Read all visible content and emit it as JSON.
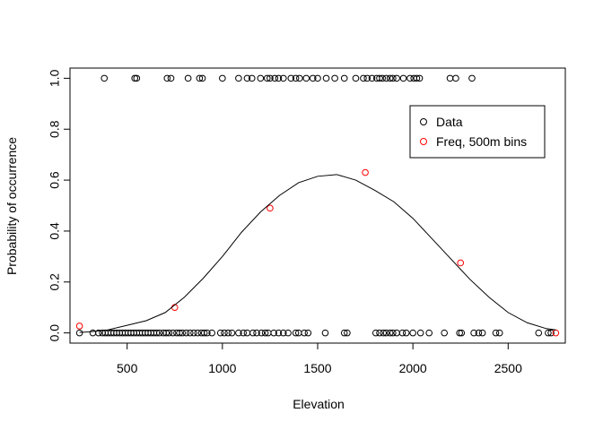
{
  "chart_data": {
    "type": "scatter",
    "title": "",
    "xlabel": "Elevation",
    "ylabel": "Probability of occurrence",
    "xlim": [
      200,
      2800
    ],
    "ylim": [
      -0.04,
      1.04
    ],
    "x_ticks": [
      500,
      1000,
      1500,
      2000,
      2500
    ],
    "x_tick_labels": [
      "500",
      "1000",
      "1500",
      "2000",
      "2500"
    ],
    "y_ticks": [
      0.0,
      0.2,
      0.4,
      0.6,
      0.8,
      1.0
    ],
    "y_tick_labels": [
      "0.0",
      "0.2",
      "0.4",
      "0.6",
      "0.8",
      "1.0"
    ],
    "grid": false,
    "legend": {
      "position": "top-right",
      "entries": [
        {
          "label": "Data",
          "color": "#000000"
        },
        {
          "label": "Freq, 500m bins",
          "color": "#ff0000"
        }
      ]
    },
    "series": [
      {
        "name": "Data",
        "type": "scatter",
        "color": "#000000",
        "points": [
          {
            "x": 380,
            "y": 1
          },
          {
            "x": 540,
            "y": 1
          },
          {
            "x": 550,
            "y": 1
          },
          {
            "x": 710,
            "y": 1
          },
          {
            "x": 730,
            "y": 1
          },
          {
            "x": 820,
            "y": 1
          },
          {
            "x": 880,
            "y": 1
          },
          {
            "x": 895,
            "y": 1
          },
          {
            "x": 1000,
            "y": 1
          },
          {
            "x": 1085,
            "y": 1
          },
          {
            "x": 1130,
            "y": 1
          },
          {
            "x": 1155,
            "y": 1
          },
          {
            "x": 1200,
            "y": 1
          },
          {
            "x": 1235,
            "y": 1
          },
          {
            "x": 1250,
            "y": 1
          },
          {
            "x": 1275,
            "y": 1
          },
          {
            "x": 1295,
            "y": 1
          },
          {
            "x": 1320,
            "y": 1
          },
          {
            "x": 1360,
            "y": 1
          },
          {
            "x": 1385,
            "y": 1
          },
          {
            "x": 1405,
            "y": 1
          },
          {
            "x": 1440,
            "y": 1
          },
          {
            "x": 1475,
            "y": 1
          },
          {
            "x": 1500,
            "y": 1
          },
          {
            "x": 1545,
            "y": 1
          },
          {
            "x": 1590,
            "y": 1
          },
          {
            "x": 1640,
            "y": 1
          },
          {
            "x": 1700,
            "y": 1
          },
          {
            "x": 1740,
            "y": 1
          },
          {
            "x": 1760,
            "y": 1
          },
          {
            "x": 1785,
            "y": 1
          },
          {
            "x": 1810,
            "y": 1
          },
          {
            "x": 1825,
            "y": 1
          },
          {
            "x": 1840,
            "y": 1
          },
          {
            "x": 1860,
            "y": 1
          },
          {
            "x": 1880,
            "y": 1
          },
          {
            "x": 1895,
            "y": 1
          },
          {
            "x": 1915,
            "y": 1
          },
          {
            "x": 1950,
            "y": 1
          },
          {
            "x": 1985,
            "y": 1
          },
          {
            "x": 2005,
            "y": 1
          },
          {
            "x": 2020,
            "y": 1
          },
          {
            "x": 2035,
            "y": 1
          },
          {
            "x": 2195,
            "y": 1
          },
          {
            "x": 2225,
            "y": 1
          },
          {
            "x": 2310,
            "y": 1
          },
          {
            "x": 250,
            "y": 0
          },
          {
            "x": 320,
            "y": 0
          },
          {
            "x": 350,
            "y": 0
          },
          {
            "x": 370,
            "y": 0
          },
          {
            "x": 385,
            "y": 0
          },
          {
            "x": 400,
            "y": 0
          },
          {
            "x": 415,
            "y": 0
          },
          {
            "x": 430,
            "y": 0
          },
          {
            "x": 445,
            "y": 0
          },
          {
            "x": 460,
            "y": 0
          },
          {
            "x": 475,
            "y": 0
          },
          {
            "x": 490,
            "y": 0
          },
          {
            "x": 505,
            "y": 0
          },
          {
            "x": 520,
            "y": 0
          },
          {
            "x": 535,
            "y": 0
          },
          {
            "x": 550,
            "y": 0
          },
          {
            "x": 565,
            "y": 0
          },
          {
            "x": 580,
            "y": 0
          },
          {
            "x": 595,
            "y": 0
          },
          {
            "x": 610,
            "y": 0
          },
          {
            "x": 625,
            "y": 0
          },
          {
            "x": 640,
            "y": 0
          },
          {
            "x": 655,
            "y": 0
          },
          {
            "x": 670,
            "y": 0
          },
          {
            "x": 690,
            "y": 0
          },
          {
            "x": 705,
            "y": 0
          },
          {
            "x": 720,
            "y": 0
          },
          {
            "x": 740,
            "y": 0
          },
          {
            "x": 760,
            "y": 0
          },
          {
            "x": 775,
            "y": 0
          },
          {
            "x": 790,
            "y": 0
          },
          {
            "x": 810,
            "y": 0
          },
          {
            "x": 830,
            "y": 0
          },
          {
            "x": 850,
            "y": 0
          },
          {
            "x": 870,
            "y": 0
          },
          {
            "x": 890,
            "y": 0
          },
          {
            "x": 905,
            "y": 0
          },
          {
            "x": 920,
            "y": 0
          },
          {
            "x": 945,
            "y": 0
          },
          {
            "x": 990,
            "y": 0
          },
          {
            "x": 1010,
            "y": 0
          },
          {
            "x": 1030,
            "y": 0
          },
          {
            "x": 1050,
            "y": 0
          },
          {
            "x": 1085,
            "y": 0
          },
          {
            "x": 1110,
            "y": 0
          },
          {
            "x": 1130,
            "y": 0
          },
          {
            "x": 1160,
            "y": 0
          },
          {
            "x": 1180,
            "y": 0
          },
          {
            "x": 1205,
            "y": 0
          },
          {
            "x": 1225,
            "y": 0
          },
          {
            "x": 1240,
            "y": 0
          },
          {
            "x": 1270,
            "y": 0
          },
          {
            "x": 1295,
            "y": 0
          },
          {
            "x": 1320,
            "y": 0
          },
          {
            "x": 1345,
            "y": 0
          },
          {
            "x": 1385,
            "y": 0
          },
          {
            "x": 1400,
            "y": 0
          },
          {
            "x": 1430,
            "y": 0
          },
          {
            "x": 1450,
            "y": 0
          },
          {
            "x": 1540,
            "y": 0
          },
          {
            "x": 1640,
            "y": 0
          },
          {
            "x": 1655,
            "y": 0
          },
          {
            "x": 1805,
            "y": 0
          },
          {
            "x": 1825,
            "y": 0
          },
          {
            "x": 1845,
            "y": 0
          },
          {
            "x": 1860,
            "y": 0
          },
          {
            "x": 1880,
            "y": 0
          },
          {
            "x": 1895,
            "y": 0
          },
          {
            "x": 1915,
            "y": 0
          },
          {
            "x": 1945,
            "y": 0
          },
          {
            "x": 1965,
            "y": 0
          },
          {
            "x": 2000,
            "y": 0
          },
          {
            "x": 2040,
            "y": 0
          },
          {
            "x": 2085,
            "y": 0
          },
          {
            "x": 2165,
            "y": 0
          },
          {
            "x": 2245,
            "y": 0
          },
          {
            "x": 2255,
            "y": 0
          },
          {
            "x": 2320,
            "y": 0
          },
          {
            "x": 2345,
            "y": 0
          },
          {
            "x": 2365,
            "y": 0
          },
          {
            "x": 2435,
            "y": 0
          },
          {
            "x": 2455,
            "y": 0
          },
          {
            "x": 2660,
            "y": 0
          },
          {
            "x": 2710,
            "y": 0
          },
          {
            "x": 2725,
            "y": 0
          }
        ]
      },
      {
        "name": "Freq, 500m bins",
        "type": "scatter",
        "color": "#ff0000",
        "points": [
          {
            "x": 250,
            "y": 0.027
          },
          {
            "x": 750,
            "y": 0.1
          },
          {
            "x": 1250,
            "y": 0.49
          },
          {
            "x": 1750,
            "y": 0.63
          },
          {
            "x": 2250,
            "y": 0.275
          },
          {
            "x": 2750,
            "y": 0.0
          }
        ]
      },
      {
        "name": "",
        "type": "line",
        "color": "#000000",
        "points": [
          {
            "x": 250,
            "y": 0.002
          },
          {
            "x": 300,
            "y": 0.004
          },
          {
            "x": 400,
            "y": 0.012
          },
          {
            "x": 500,
            "y": 0.03
          },
          {
            "x": 600,
            "y": 0.048
          },
          {
            "x": 700,
            "y": 0.08
          },
          {
            "x": 800,
            "y": 0.14
          },
          {
            "x": 900,
            "y": 0.215
          },
          {
            "x": 1000,
            "y": 0.3
          },
          {
            "x": 1100,
            "y": 0.395
          },
          {
            "x": 1200,
            "y": 0.475
          },
          {
            "x": 1300,
            "y": 0.54
          },
          {
            "x": 1400,
            "y": 0.59
          },
          {
            "x": 1500,
            "y": 0.615
          },
          {
            "x": 1600,
            "y": 0.622
          },
          {
            "x": 1700,
            "y": 0.6
          },
          {
            "x": 1800,
            "y": 0.56
          },
          {
            "x": 1900,
            "y": 0.515
          },
          {
            "x": 2000,
            "y": 0.45
          },
          {
            "x": 2100,
            "y": 0.37
          },
          {
            "x": 2200,
            "y": 0.29
          },
          {
            "x": 2300,
            "y": 0.21
          },
          {
            "x": 2400,
            "y": 0.14
          },
          {
            "x": 2500,
            "y": 0.08
          },
          {
            "x": 2600,
            "y": 0.04
          },
          {
            "x": 2700,
            "y": 0.017
          },
          {
            "x": 2750,
            "y": 0.012
          }
        ]
      }
    ]
  }
}
